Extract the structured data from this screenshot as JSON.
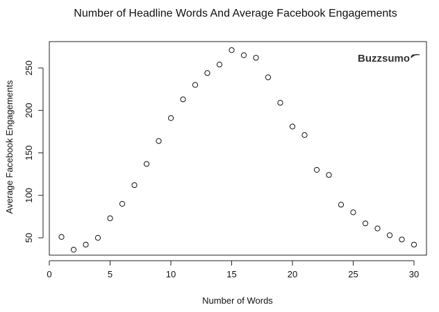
{
  "chart_data": {
    "type": "scatter",
    "title": "Number of Headline Words And Average Facebook Engagements",
    "xlabel": "Number of Words",
    "ylabel": "Average Facebook Engagements",
    "xlim": [
      0,
      30
    ],
    "ylim": [
      30,
      280
    ],
    "xticks": [
      0,
      5,
      10,
      15,
      20,
      25,
      30
    ],
    "yticks": [
      50,
      100,
      150,
      200,
      250
    ],
    "grid": false,
    "legend": "none",
    "marker": "open-circle",
    "logo": "Buzzsumo",
    "x": [
      1,
      2,
      3,
      4,
      5,
      6,
      7,
      8,
      9,
      10,
      11,
      12,
      13,
      14,
      15,
      16,
      17,
      18,
      19,
      20,
      21,
      22,
      23,
      24,
      25,
      26,
      27,
      28,
      29,
      30
    ],
    "y": [
      51,
      36,
      42,
      50,
      73,
      90,
      112,
      137,
      164,
      191,
      213,
      230,
      244,
      254,
      271,
      265,
      262,
      239,
      209,
      181,
      171,
      130,
      124,
      89,
      80,
      67,
      61,
      53,
      48,
      42
    ]
  }
}
